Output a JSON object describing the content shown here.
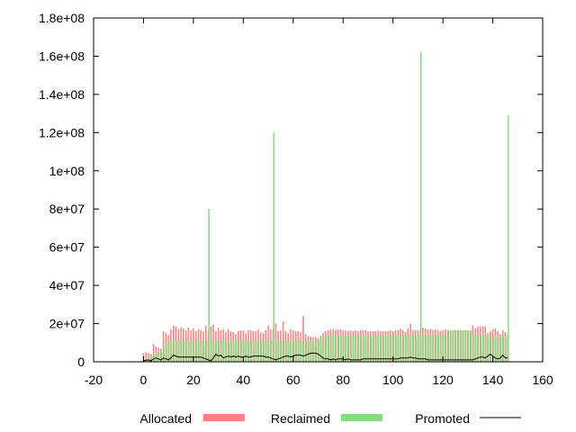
{
  "chart_data": {
    "type": "bar",
    "title": "",
    "xlabel": "",
    "ylabel": "",
    "xlim": [
      -20,
      160
    ],
    "ylim": [
      0,
      180000000
    ],
    "x_ticks": [
      -20,
      0,
      20,
      40,
      60,
      80,
      100,
      120,
      140,
      160
    ],
    "x_tick_labels": [
      "-20",
      "0",
      "20",
      "40",
      "60",
      "80",
      "100",
      "120",
      "140",
      "160"
    ],
    "y_ticks": [
      0,
      20000000,
      40000000,
      60000000,
      80000000,
      100000000,
      120000000,
      140000000,
      160000000,
      180000000
    ],
    "y_tick_labels": [
      "0",
      "2e+07",
      "4e+07",
      "6e+07",
      "8e+07",
      "1e+08",
      "1.2e+08",
      "1.4e+08",
      "1.6e+08",
      "1.8e+08"
    ],
    "grid": false,
    "legend_position": "bottom",
    "x": [
      0,
      1,
      2,
      3,
      4,
      5,
      6,
      7,
      8,
      9,
      10,
      11,
      12,
      13,
      14,
      15,
      16,
      17,
      18,
      19,
      20,
      21,
      22,
      23,
      24,
      25,
      26,
      27,
      28,
      29,
      30,
      31,
      32,
      33,
      34,
      35,
      36,
      37,
      38,
      39,
      40,
      41,
      42,
      43,
      44,
      45,
      46,
      47,
      48,
      49,
      50,
      51,
      52,
      53,
      54,
      55,
      56,
      57,
      58,
      59,
      60,
      61,
      62,
      63,
      64,
      65,
      66,
      67,
      68,
      69,
      70,
      71,
      72,
      73,
      74,
      75,
      76,
      77,
      78,
      79,
      80,
      81,
      82,
      83,
      84,
      85,
      86,
      87,
      88,
      89,
      90,
      91,
      92,
      93,
      94,
      95,
      96,
      97,
      98,
      99,
      100,
      101,
      102,
      103,
      104,
      105,
      106,
      107,
      108,
      109,
      110,
      111,
      112,
      113,
      114,
      115,
      116,
      117,
      118,
      119,
      120,
      121,
      122,
      123,
      124,
      125,
      126,
      127,
      128,
      129,
      130,
      131,
      132,
      133,
      134,
      135,
      136,
      137,
      138,
      139,
      140,
      141,
      142,
      143,
      144,
      145,
      146
    ],
    "series": [
      {
        "name": "Allocated",
        "color": "#ff8080",
        "style": "bar",
        "values": [
          4500000,
          5000000,
          4500000,
          4000000,
          9500000,
          8000000,
          7500000,
          7000000,
          16000000,
          15000000,
          14000000,
          17000000,
          19000000,
          18500000,
          17000000,
          18000000,
          17500000,
          16500000,
          18000000,
          16500000,
          17500000,
          16000000,
          17000000,
          16500000,
          16000000,
          19000000,
          16000000,
          18500000,
          19500000,
          16000000,
          18000000,
          16500000,
          17000000,
          15500000,
          17000000,
          16000000,
          15500000,
          14500000,
          16000000,
          16500000,
          16500000,
          15000000,
          16500000,
          16500000,
          16000000,
          16000000,
          17000000,
          15500000,
          15000000,
          16500000,
          19000000,
          17000000,
          17000000,
          20000000,
          16000000,
          16500000,
          21000000,
          16000000,
          15000000,
          17000000,
          16500000,
          16000000,
          16000000,
          15500000,
          24000000,
          14500000,
          13500000,
          13000000,
          13000000,
          13000000,
          12500000,
          13500000,
          15000000,
          16000000,
          16500000,
          17000000,
          17000000,
          16500000,
          17000000,
          17000000,
          16500000,
          16500000,
          16000000,
          16500000,
          16000000,
          16500000,
          16000000,
          16500000,
          16500000,
          16500000,
          16000000,
          16000000,
          16000000,
          16000000,
          16500000,
          16000000,
          16000000,
          16000000,
          16000000,
          16500000,
          16000000,
          16500000,
          16500000,
          17000000,
          16500000,
          15500000,
          17500000,
          20000000,
          16500000,
          16500000,
          16500000,
          17000000,
          18000000,
          17500000,
          17000000,
          17000000,
          16500000,
          17000000,
          16500000,
          16000000,
          16500000,
          17000000,
          16500000,
          16500000,
          16500000,
          16500000,
          16500000,
          16500000,
          16500000,
          16500000,
          16500000,
          16500000,
          19000000,
          17500000,
          18500000,
          18500000,
          18500000,
          18500000,
          15000000,
          16000000,
          17000000,
          17500000,
          16000000,
          14500000,
          16500000,
          15500000,
          14000000
        ],
        "spikes": [
          [
            26,
            80000000
          ],
          [
            52,
            120000000
          ],
          [
            111,
            162000000
          ],
          [
            146,
            129000000
          ]
        ]
      },
      {
        "name": "Reclaimed",
        "color": "#80e080",
        "style": "bar",
        "values": [
          0,
          1000000,
          2000000,
          2000000,
          4000000,
          5000000,
          4500000,
          5500000,
          8000000,
          10000000,
          11000000,
          11000000,
          11000000,
          11000000,
          11000000,
          11000000,
          11000000,
          11000000,
          11000000,
          11000000,
          11000000,
          11000000,
          11000000,
          11000000,
          11000000,
          11000000,
          80000000,
          11000000,
          11000000,
          11000000,
          11000000,
          11000000,
          11000000,
          11000000,
          11000000,
          11000000,
          11000000,
          11000000,
          11000000,
          11000000,
          11000000,
          11000000,
          11000000,
          11000000,
          11000000,
          11000000,
          11000000,
          11000000,
          11000000,
          11000000,
          11000000,
          11000000,
          120000000,
          11000000,
          11000000,
          11000000,
          11000000,
          11000000,
          11000000,
          11000000,
          11000000,
          11000000,
          11000000,
          11000000,
          11000000,
          11000000,
          11000000,
          11000000,
          11000000,
          11000000,
          11000000,
          12000000,
          13000000,
          14000000,
          14000000,
          14000000,
          14000000,
          14000000,
          14000000,
          14000000,
          14000000,
          14000000,
          14000000,
          14000000,
          14000000,
          14000000,
          14000000,
          14000000,
          14000000,
          14000000,
          14000000,
          14000000,
          14000000,
          14000000,
          14000000,
          14000000,
          14000000,
          14000000,
          14000000,
          14000000,
          14000000,
          14000000,
          14000000,
          14000000,
          14000000,
          14000000,
          14000000,
          14000000,
          14000000,
          14000000,
          14000000,
          162000000,
          14000000,
          14000000,
          14000000,
          14000000,
          14000000,
          14000000,
          14000000,
          14000000,
          14000000,
          14000000,
          16500000,
          16500000,
          16500000,
          16500000,
          16500000,
          16500000,
          16500000,
          16500000,
          16500000,
          16500000,
          14000000,
          14000000,
          14000000,
          14000000,
          14000000,
          14000000,
          14000000,
          13000000,
          13000000,
          13000000,
          13000000,
          13000000,
          13000000,
          13000000,
          129000000
        ]
      },
      {
        "name": "Promoted",
        "color": "#000000",
        "style": "line",
        "values": [
          500000,
          800000,
          1000000,
          500000,
          1500000,
          2000000,
          1500000,
          1000000,
          2000000,
          1500000,
          1000000,
          2000000,
          3500000,
          3000000,
          2500000,
          2500000,
          2500000,
          2500000,
          2500000,
          2500000,
          2500000,
          2500000,
          2500000,
          2500000,
          2000000,
          1500000,
          1000000,
          500000,
          2000000,
          4000000,
          3000000,
          3500000,
          2000000,
          2500000,
          3000000,
          2500000,
          3000000,
          2500000,
          3000000,
          2500000,
          2500000,
          3000000,
          2500000,
          2500000,
          3000000,
          3000000,
          3000000,
          3000000,
          3000000,
          2500000,
          2500000,
          2000000,
          1500000,
          1000000,
          1500000,
          2000000,
          2500000,
          3000000,
          3000000,
          2500000,
          3000000,
          3500000,
          3500000,
          3500000,
          3000000,
          3500000,
          4000000,
          4500000,
          4500000,
          4500000,
          4000000,
          3000000,
          2000000,
          1500000,
          1500000,
          1000000,
          1500000,
          1000000,
          1500000,
          1500000,
          1500000,
          1000000,
          1500000,
          1000000,
          1000000,
          1000000,
          1000000,
          1000000,
          1500000,
          1500000,
          1500000,
          1500000,
          1500000,
          1500000,
          1500000,
          1500000,
          1500000,
          1500000,
          1500000,
          1500000,
          1500000,
          1500000,
          1500000,
          2000000,
          2000000,
          2000000,
          2000000,
          2500000,
          2000000,
          2000000,
          1500000,
          1500000,
          1500000,
          1500000,
          1000000,
          1000000,
          1000000,
          1000000,
          1000000,
          1000000,
          1000000,
          1000000,
          1000000,
          1000000,
          1000000,
          1000000,
          1000000,
          1000000,
          1000000,
          1000000,
          1000000,
          1000000,
          1000000,
          1500000,
          2000000,
          2500000,
          2500000,
          2000000,
          3000000,
          4000000,
          3000000,
          2000000,
          1500000,
          2000000,
          3500000,
          2000000,
          2000000
        ]
      }
    ]
  }
}
